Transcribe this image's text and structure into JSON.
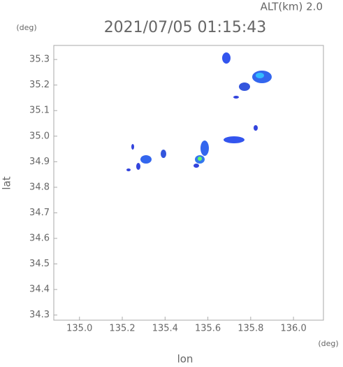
{
  "chart_data": {
    "type": "map",
    "title": "2021/07/05 01:15:43",
    "subtitle": "ALT(km) 2.0",
    "x_label": "lon",
    "y_label": "lat",
    "x_unit": "(deg)",
    "y_unit": "(deg)",
    "xlim": [
      134.88,
      136.14
    ],
    "ylim": [
      34.28,
      35.355
    ],
    "xticks": [
      {
        "value": 135,
        "label": "135.0"
      },
      135.2,
      135.4,
      135.6,
      135.8,
      {
        "value": 136,
        "label": "136.0"
      }
    ],
    "yticks": [
      35.3,
      35.2,
      35.1,
      {
        "value": 35,
        "label": "35.0"
      },
      34.9,
      34.8,
      34.7,
      34.6,
      34.5,
      34.4,
      34.3
    ]
  }
}
